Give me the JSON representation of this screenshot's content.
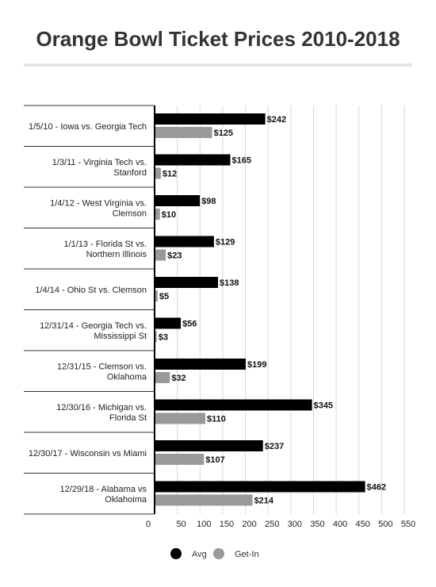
{
  "chart_data": {
    "type": "bar",
    "orientation": "horizontal",
    "title": "Orange Bowl Ticket Prices 2010-2018",
    "categories": [
      "1/5/10 - Iowa vs. Georgia Tech",
      "1/3/11 - Virginia Tech vs. Stanford",
      "1/4/12 - West Virginia vs. Clemson",
      "1/1/13 - Florida St vs. Northern Illinois",
      "1/4/14 - Ohio St vs. Clemson",
      "12/31/14 - Georgia Tech vs. Mississippi St",
      "12/31/15 - Clemson vs. Oklahoma",
      "12/30/16 - Michigan vs. Florida St",
      "12/30/17 - Wisconsin vs Miami",
      "12/29/18 - Alabama vs Oklahoima"
    ],
    "series": [
      {
        "name": "Avg",
        "color": "#000000",
        "values": [
          242,
          165,
          98,
          129,
          138,
          56,
          199,
          345,
          237,
          462
        ],
        "labels": [
          "$242",
          "$165",
          "$98",
          "$129",
          "$138",
          "$56",
          "$199",
          "$345",
          "$237",
          "$462"
        ]
      },
      {
        "name": "Get-In",
        "color": "#999999",
        "values": [
          125,
          12,
          10,
          23,
          5,
          3,
          32,
          110,
          107,
          214
        ],
        "labels": [
          "$125",
          "$12",
          "$10",
          "$23",
          "$5",
          "$3",
          "$32",
          "$110",
          "$107",
          "$214"
        ]
      }
    ],
    "xlim": [
      0,
      550
    ],
    "xticks": [
      "0",
      "50",
      "100",
      "150",
      "200",
      "250",
      "300",
      "350",
      "400",
      "450",
      "500",
      "550"
    ],
    "grid": true,
    "legend": "bottom-center"
  }
}
